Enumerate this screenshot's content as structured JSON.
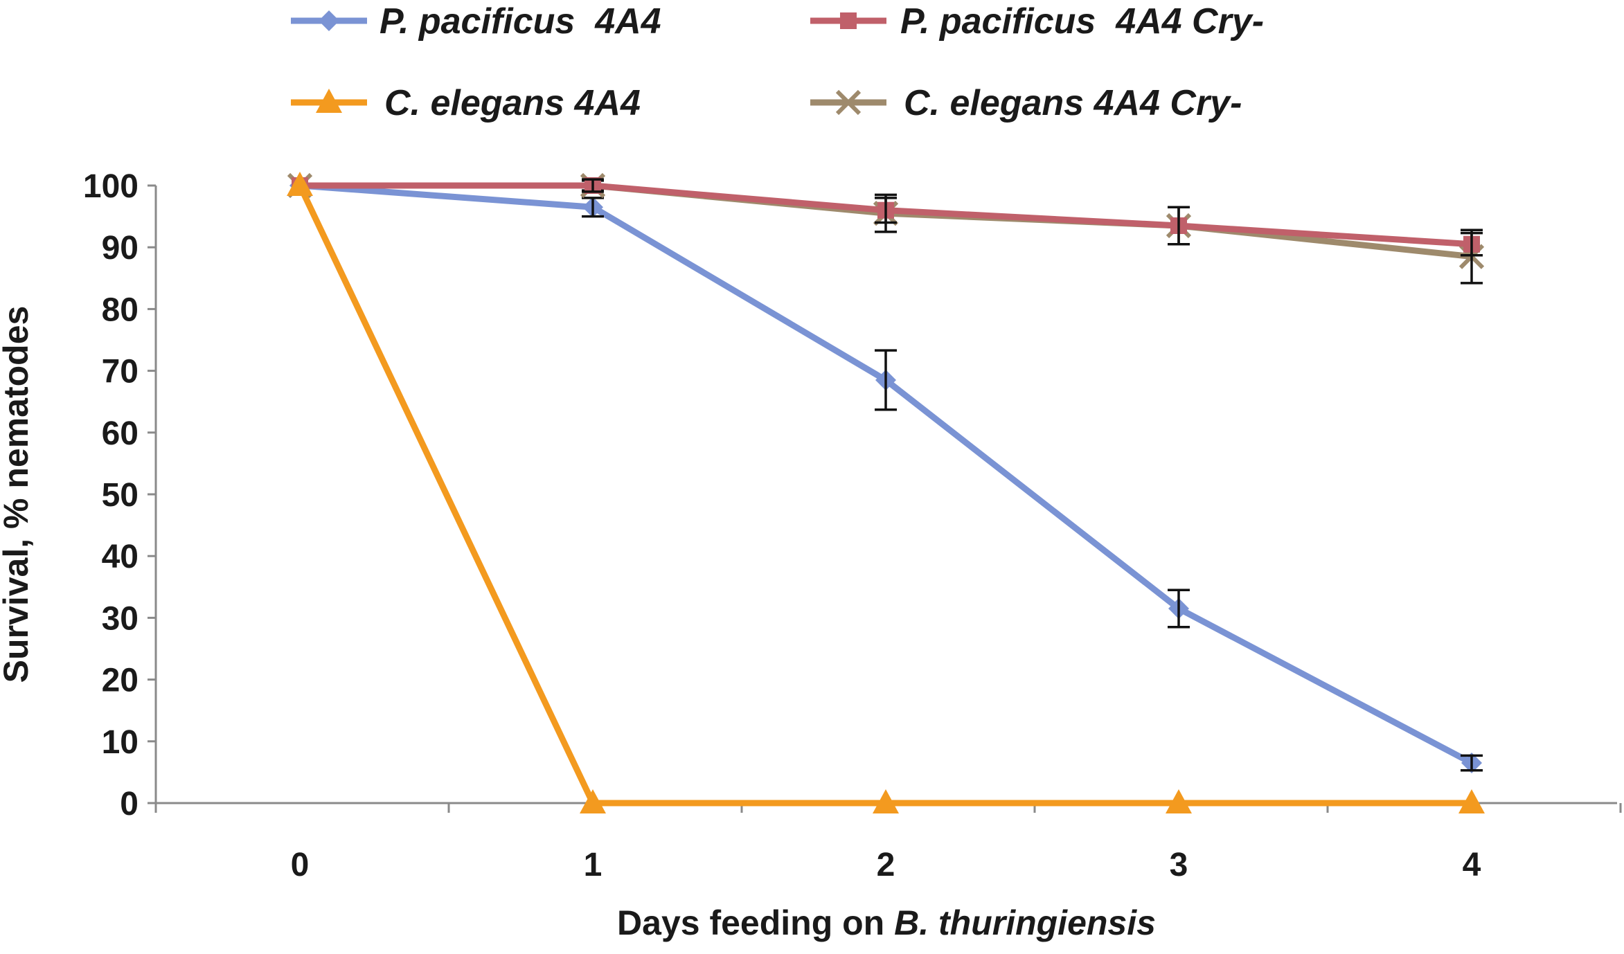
{
  "chart_data": {
    "type": "line",
    "title": "",
    "xlabel_prefix": "Days feeding on ",
    "xlabel_italic": "B. thuringiensis",
    "ylabel": "Survival, % nematodes",
    "x": [
      0,
      1,
      2,
      3,
      4
    ],
    "xlim": [
      0,
      4
    ],
    "ylim": [
      0,
      100
    ],
    "x_ticks": [
      "0",
      "1",
      "2",
      "3",
      "4"
    ],
    "y_ticks": [
      "0",
      "10",
      "20",
      "30",
      "40",
      "50",
      "60",
      "70",
      "80",
      "90",
      "100"
    ],
    "grid": false,
    "legend_position": "top",
    "series": [
      {
        "name": "P. pacificus  4A4",
        "color": "#7a93d4",
        "marker": "diamond",
        "values": [
          100,
          96.5,
          68.5,
          31.5,
          6.5
        ],
        "errors": [
          0,
          1.5,
          4.8,
          3.0,
          1.2
        ]
      },
      {
        "name": "P. pacificus  4A4 Cry-",
        "color": "#c0606a",
        "marker": "square",
        "values": [
          100,
          100,
          96,
          93.5,
          90.5
        ],
        "errors": [
          0,
          1.0,
          2.0,
          3.0,
          1.8
        ]
      },
      {
        "name": "C. elegans 4A4",
        "color": "#f39a1f",
        "marker": "triangle",
        "values": [
          100,
          0,
          0,
          0,
          0
        ],
        "errors": [
          0,
          0,
          0,
          0,
          0
        ]
      },
      {
        "name": "C. elegans 4A4 Cry-",
        "color": "#9e8a6c",
        "marker": "x",
        "values": [
          100,
          100,
          95.5,
          93.5,
          88.5
        ],
        "errors": [
          0,
          0.8,
          3.0,
          3.0,
          4.3
        ]
      }
    ]
  }
}
